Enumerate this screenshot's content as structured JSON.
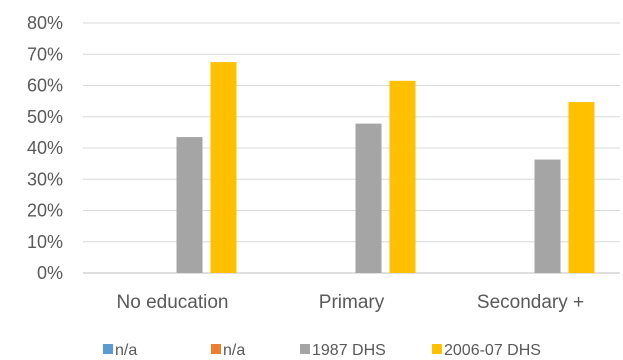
{
  "chart_data": {
    "type": "bar",
    "categories": [
      "No education",
      "Primary",
      "Secondary +"
    ],
    "series": [
      {
        "name": "n/a",
        "color": "#5B9BD5",
        "values": [
          0,
          0,
          0
        ]
      },
      {
        "name": "n/a",
        "color": "#ED7D31",
        "values": [
          0,
          0,
          0
        ]
      },
      {
        "name": "1987 DHS",
        "color": "#A5A5A5",
        "values": [
          43.5,
          47.8,
          36.3
        ]
      },
      {
        "name": "2006-07 DHS",
        "color": "#FFC000",
        "values": [
          67.5,
          61.5,
          54.7
        ]
      }
    ],
    "ylim": [
      0,
      80
    ],
    "yticks": [
      "0%",
      "10%",
      "20%",
      "30%",
      "40%",
      "50%",
      "60%",
      "70%",
      "80%"
    ],
    "grid": true,
    "legend_position": "bottom"
  }
}
